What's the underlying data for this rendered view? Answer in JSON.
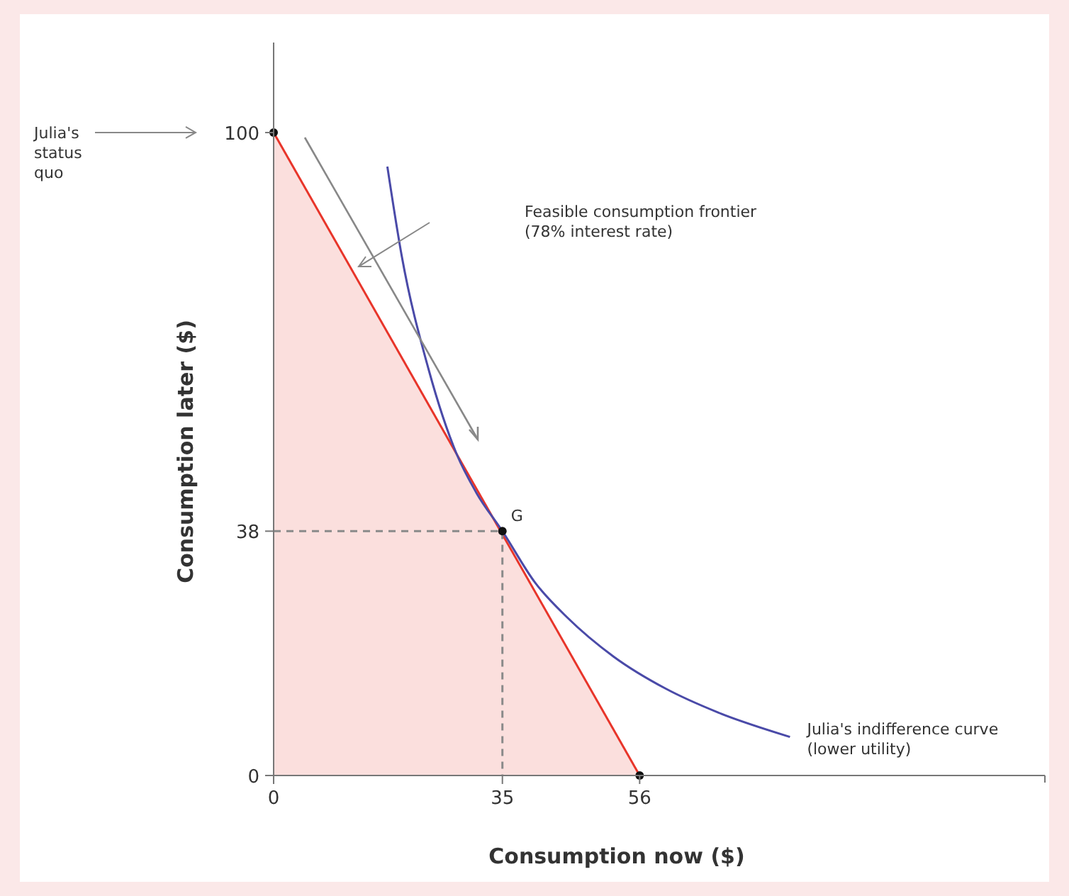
{
  "chart_data": {
    "type": "line",
    "xlabel": "Consumption now ($)",
    "ylabel": "Consumption later ($)",
    "xlim": [
      0,
      118
    ],
    "ylim": [
      0,
      114
    ],
    "xticks": [
      0,
      35,
      56
    ],
    "yticks": [
      0,
      38,
      100
    ],
    "grid": false,
    "series": [
      {
        "type": "area",
        "color": "#e8352a",
        "x": [
          0,
          56
        ],
        "values": [
          100,
          0
        ]
      },
      {
        "color": "#4a4aa8",
        "x": [
          17.4,
          19.6,
          23.7,
          28,
          31,
          35,
          40,
          45,
          52,
          60,
          68,
          79
        ],
        "values": [
          94.7,
          80.8,
          63.2,
          50,
          44,
          38,
          30,
          24.5,
          18.5,
          13.5,
          9.8,
          6
        ]
      },
      {
        "color": "#8a8a8a",
        "line_style": "dashed",
        "x": [
          0,
          35,
          35
        ],
        "values": [
          38,
          38,
          0
        ]
      },
      {
        "type": "scatter",
        "color": "#111111",
        "marker": "circle",
        "x": [
          0,
          35,
          56
        ],
        "values": [
          100,
          38,
          0
        ]
      }
    ],
    "annotations": [
      "Julia's status quo",
      "Feasible consumption frontier (78% interest rate)",
      "Julia's indifference curve (lower utility)",
      {
        "text": "G",
        "x": 35,
        "y": 38
      }
    ]
  }
}
